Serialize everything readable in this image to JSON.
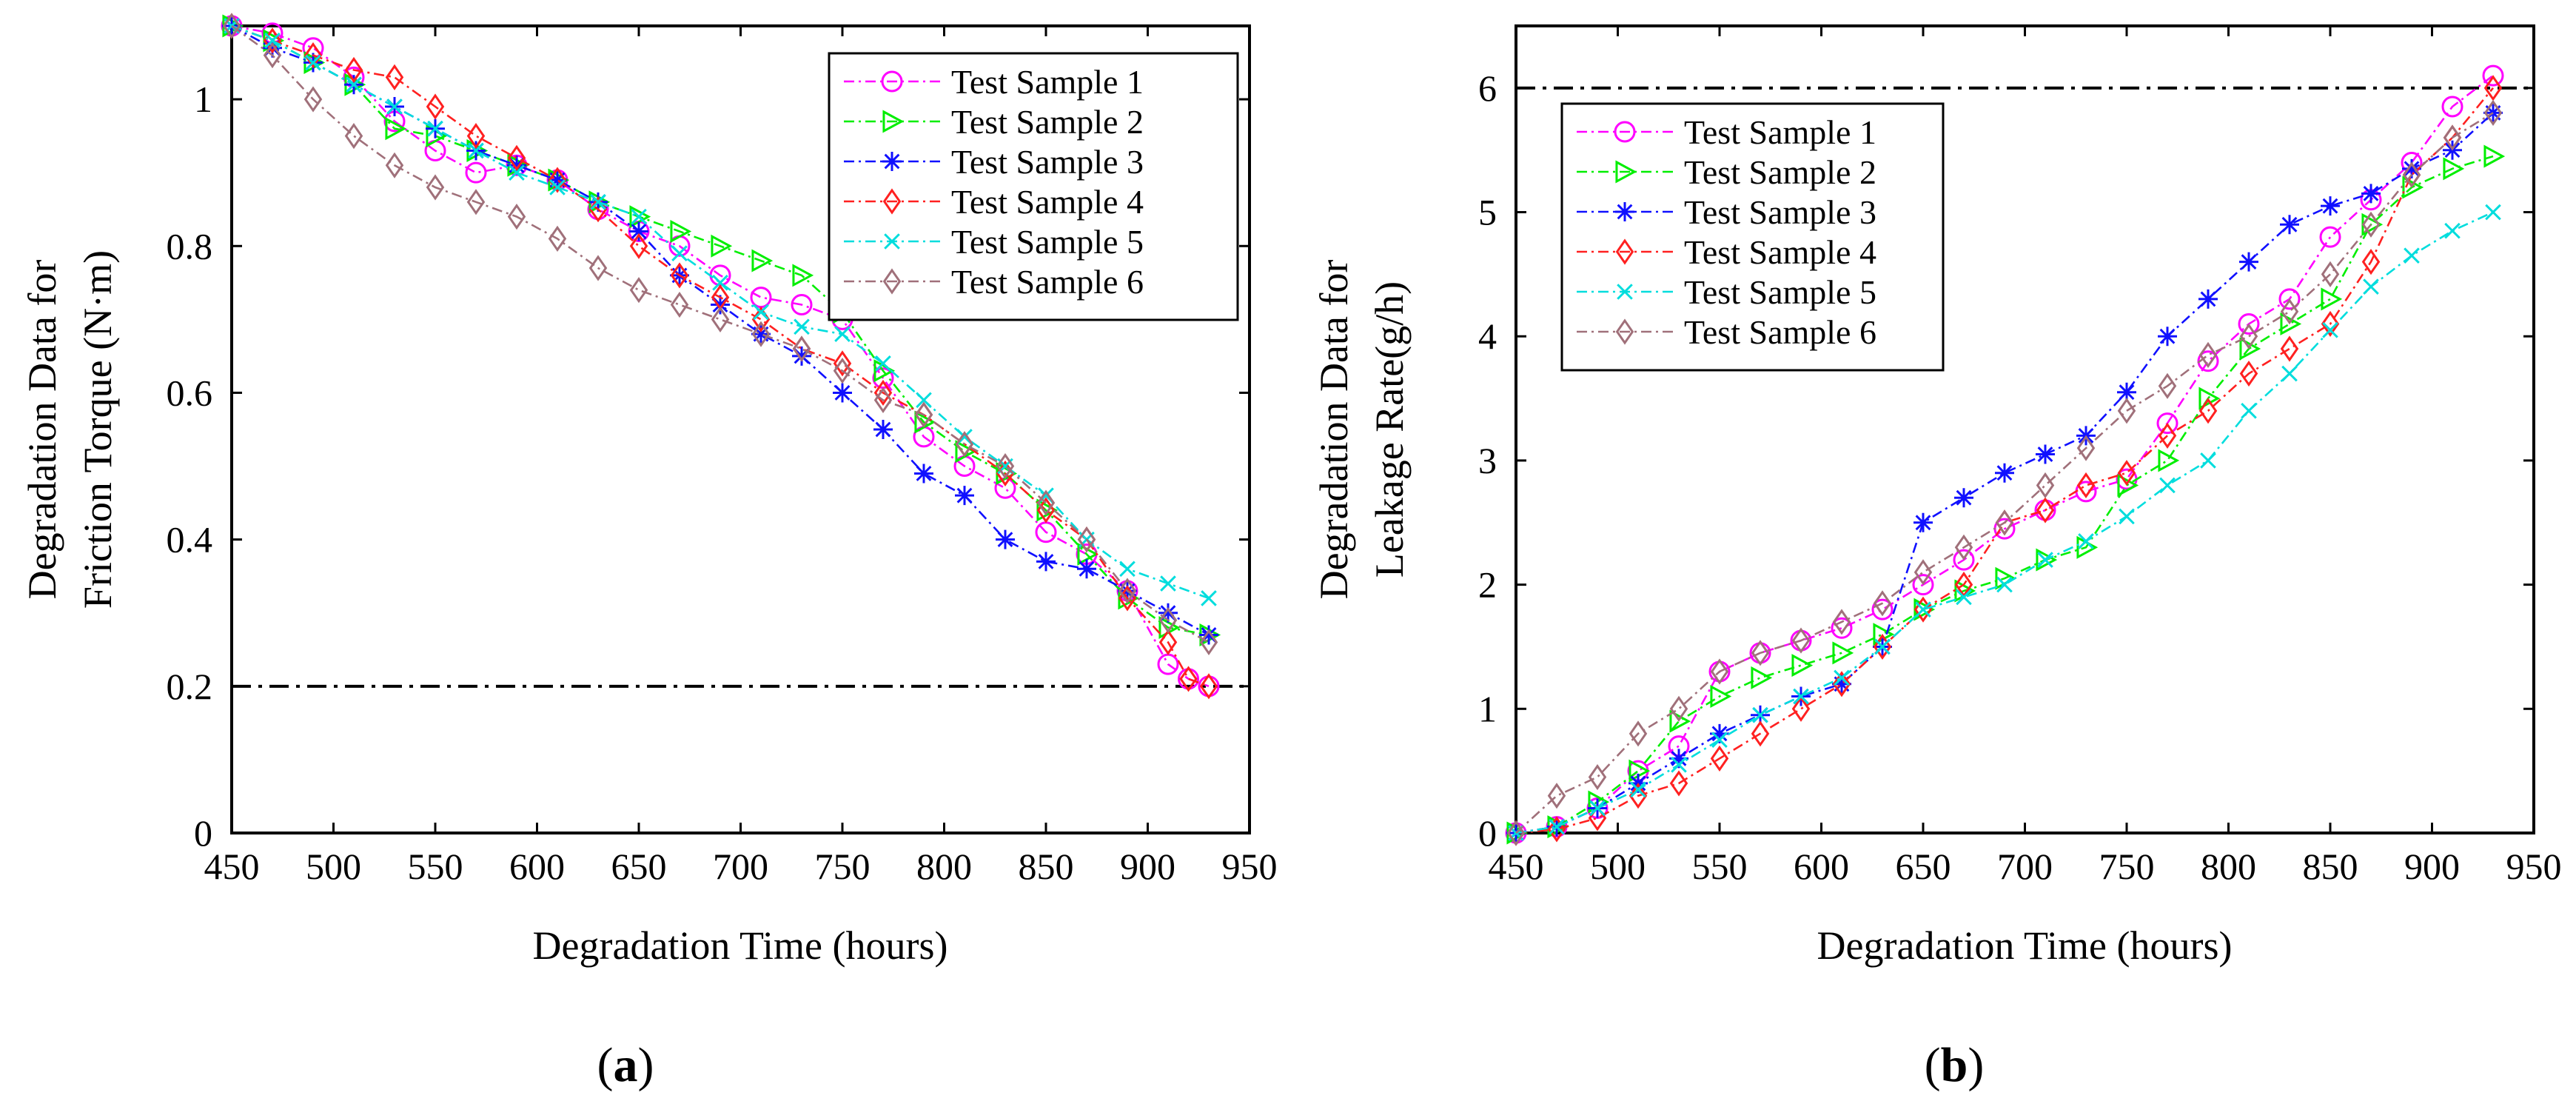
{
  "chart_data": [
    {
      "id": "a",
      "type": "line",
      "panel_label": "a",
      "xlabel": "Degradation Time (hours)",
      "ylabel_lines": [
        "Degradation Data for",
        "Friction Torque (N·m)"
      ],
      "xlim": [
        450,
        950
      ],
      "ylim": [
        0,
        1.1
      ],
      "x_ticks": [
        450,
        500,
        550,
        600,
        650,
        700,
        750,
        800,
        850,
        900,
        950
      ],
      "x_tick_labels": [
        "450",
        "500",
        "550",
        "600",
        "650",
        "700",
        "750",
        "800",
        "850",
        "900",
        "950"
      ],
      "y_ticks": [
        0,
        0.2,
        0.4,
        0.6,
        0.8,
        1
      ],
      "y_tick_labels": [
        "0",
        "0.2",
        "0.4",
        "0.6",
        "0.8",
        "1"
      ],
      "threshold": 0.2,
      "legend_position": "top-right",
      "series": [
        {
          "name": "Test Sample 1",
          "color": "#ff00ff",
          "marker": "circle",
          "x": [
            450,
            470,
            490,
            510,
            530,
            550,
            570,
            590,
            610,
            630,
            650,
            670,
            690,
            710,
            730,
            750,
            770,
            790,
            810,
            830,
            850,
            870,
            890,
            910,
            920,
            930
          ],
          "y": [
            1.1,
            1.09,
            1.07,
            1.03,
            0.97,
            0.93,
            0.9,
            0.91,
            0.89,
            0.85,
            0.82,
            0.8,
            0.76,
            0.73,
            0.72,
            0.7,
            0.62,
            0.54,
            0.5,
            0.47,
            0.41,
            0.38,
            0.33,
            0.23,
            0.21,
            0.2
          ]
        },
        {
          "name": "Test Sample 2",
          "color": "#00ee00",
          "marker": "triangle-right",
          "x": [
            450,
            470,
            490,
            510,
            530,
            550,
            570,
            590,
            610,
            630,
            650,
            670,
            690,
            710,
            730,
            750,
            770,
            790,
            810,
            830,
            850,
            870,
            890,
            910,
            930
          ],
          "y": [
            1.1,
            1.08,
            1.05,
            1.02,
            0.96,
            0.95,
            0.93,
            0.91,
            0.89,
            0.86,
            0.84,
            0.82,
            0.8,
            0.78,
            0.76,
            0.71,
            0.63,
            0.56,
            0.52,
            0.49,
            0.44,
            0.38,
            0.32,
            0.28,
            0.27
          ]
        },
        {
          "name": "Test Sample 3",
          "color": "#1010ff",
          "marker": "star",
          "x": [
            450,
            470,
            490,
            510,
            530,
            550,
            570,
            590,
            610,
            630,
            650,
            670,
            690,
            710,
            730,
            750,
            770,
            790,
            810,
            830,
            850,
            870,
            890,
            910,
            930
          ],
          "y": [
            1.1,
            1.07,
            1.05,
            1.02,
            0.99,
            0.96,
            0.93,
            0.91,
            0.89,
            0.86,
            0.82,
            0.76,
            0.72,
            0.68,
            0.65,
            0.6,
            0.55,
            0.49,
            0.46,
            0.4,
            0.37,
            0.36,
            0.33,
            0.3,
            0.27
          ]
        },
        {
          "name": "Test Sample 4",
          "color": "#ff2020",
          "marker": "diamond",
          "x": [
            450,
            470,
            490,
            510,
            530,
            550,
            570,
            590,
            610,
            630,
            650,
            670,
            690,
            710,
            730,
            750,
            770,
            790,
            810,
            830,
            850,
            870,
            890,
            910,
            920,
            930
          ],
          "y": [
            1.1,
            1.08,
            1.06,
            1.04,
            1.03,
            0.99,
            0.95,
            0.92,
            0.89,
            0.85,
            0.8,
            0.76,
            0.73,
            0.7,
            0.66,
            0.64,
            0.6,
            0.57,
            0.53,
            0.49,
            0.44,
            0.4,
            0.32,
            0.26,
            0.21,
            0.2
          ]
        },
        {
          "name": "Test Sample 5",
          "color": "#00dddd",
          "marker": "cross",
          "x": [
            450,
            470,
            490,
            510,
            530,
            550,
            570,
            590,
            610,
            630,
            650,
            670,
            690,
            710,
            730,
            750,
            770,
            790,
            810,
            830,
            850,
            870,
            890,
            910,
            930
          ],
          "y": [
            1.1,
            1.08,
            1.05,
            1.02,
            0.99,
            0.96,
            0.93,
            0.9,
            0.88,
            0.86,
            0.84,
            0.79,
            0.75,
            0.71,
            0.69,
            0.68,
            0.64,
            0.59,
            0.54,
            0.5,
            0.46,
            0.4,
            0.36,
            0.34,
            0.32
          ]
        },
        {
          "name": "Test Sample 6",
          "color": "#a0707a",
          "marker": "diamond",
          "x": [
            450,
            470,
            490,
            510,
            530,
            550,
            570,
            590,
            610,
            630,
            650,
            670,
            690,
            710,
            730,
            750,
            770,
            790,
            810,
            830,
            850,
            870,
            890,
            910,
            930
          ],
          "y": [
            1.1,
            1.06,
            1.0,
            0.95,
            0.91,
            0.88,
            0.86,
            0.84,
            0.81,
            0.77,
            0.74,
            0.72,
            0.7,
            0.68,
            0.66,
            0.63,
            0.59,
            0.57,
            0.53,
            0.5,
            0.45,
            0.4,
            0.33,
            0.29,
            0.26
          ]
        }
      ]
    },
    {
      "id": "b",
      "type": "line",
      "panel_label": "b",
      "xlabel": "Degradation Time (hours)",
      "ylabel_lines": [
        "Degradation Data for",
        "Leakage Rate(g/h)"
      ],
      "xlim": [
        450,
        950
      ],
      "ylim": [
        0,
        6.5
      ],
      "x_ticks": [
        450,
        500,
        550,
        600,
        650,
        700,
        750,
        800,
        850,
        900,
        950
      ],
      "x_tick_labels": [
        "450",
        "500",
        "550",
        "600",
        "650",
        "700",
        "750",
        "800",
        "850",
        "900",
        "950"
      ],
      "y_ticks": [
        0,
        1,
        2,
        3,
        4,
        5,
        6
      ],
      "y_tick_labels": [
        "0",
        "1",
        "2",
        "3",
        "4",
        "5",
        "6"
      ],
      "threshold": 6,
      "legend_position": "top-left",
      "series": [
        {
          "name": "Test Sample 1",
          "color": "#ff00ff",
          "marker": "circle",
          "x": [
            450,
            470,
            490,
            510,
            530,
            550,
            570,
            590,
            610,
            630,
            650,
            670,
            690,
            710,
            730,
            750,
            770,
            790,
            810,
            830,
            850,
            870,
            890,
            910,
            930
          ],
          "y": [
            0,
            0.05,
            0.2,
            0.5,
            0.7,
            1.3,
            1.45,
            1.55,
            1.65,
            1.8,
            2.0,
            2.2,
            2.45,
            2.6,
            2.75,
            2.85,
            3.3,
            3.8,
            4.1,
            4.3,
            4.8,
            5.1,
            5.4,
            5.85,
            6.1
          ]
        },
        {
          "name": "Test Sample 2",
          "color": "#00ee00",
          "marker": "triangle-right",
          "x": [
            450,
            470,
            490,
            510,
            530,
            550,
            570,
            590,
            610,
            630,
            650,
            670,
            690,
            710,
            730,
            750,
            770,
            790,
            810,
            830,
            850,
            870,
            890,
            910,
            930
          ],
          "y": [
            0,
            0.05,
            0.25,
            0.5,
            0.9,
            1.1,
            1.25,
            1.35,
            1.45,
            1.6,
            1.8,
            1.95,
            2.05,
            2.2,
            2.3,
            2.8,
            3.0,
            3.5,
            3.9,
            4.1,
            4.3,
            4.9,
            5.2,
            5.35,
            5.45
          ]
        },
        {
          "name": "Test Sample 3",
          "color": "#1010ff",
          "marker": "star",
          "x": [
            450,
            470,
            490,
            510,
            530,
            550,
            570,
            590,
            610,
            630,
            650,
            670,
            690,
            710,
            730,
            750,
            770,
            790,
            810,
            830,
            850,
            870,
            890,
            910,
            930
          ],
          "y": [
            0,
            0.05,
            0.2,
            0.4,
            0.6,
            0.8,
            0.95,
            1.1,
            1.2,
            1.5,
            2.5,
            2.7,
            2.9,
            3.05,
            3.2,
            3.55,
            4.0,
            4.3,
            4.6,
            4.9,
            5.05,
            5.15,
            5.35,
            5.5,
            5.8
          ]
        },
        {
          "name": "Test Sample 4",
          "color": "#ff2020",
          "marker": "diamond",
          "x": [
            450,
            470,
            490,
            510,
            530,
            550,
            570,
            590,
            610,
            630,
            650,
            670,
            690,
            710,
            730,
            750,
            770,
            790,
            810,
            830,
            850,
            870,
            890,
            910,
            930
          ],
          "y": [
            0,
            0.03,
            0.12,
            0.3,
            0.4,
            0.6,
            0.8,
            1.0,
            1.2,
            1.5,
            1.8,
            2.0,
            2.5,
            2.6,
            2.8,
            2.9,
            3.2,
            3.4,
            3.7,
            3.9,
            4.1,
            4.6,
            5.3,
            5.6,
            6.0
          ]
        },
        {
          "name": "Test Sample 5",
          "color": "#00dddd",
          "marker": "cross",
          "x": [
            450,
            470,
            490,
            510,
            530,
            550,
            570,
            590,
            610,
            630,
            650,
            670,
            690,
            710,
            730,
            750,
            770,
            790,
            810,
            830,
            850,
            870,
            890,
            910,
            930
          ],
          "y": [
            0,
            0.05,
            0.2,
            0.35,
            0.55,
            0.75,
            0.95,
            1.1,
            1.25,
            1.5,
            1.8,
            1.9,
            2.0,
            2.2,
            2.35,
            2.55,
            2.8,
            3.0,
            3.4,
            3.7,
            4.05,
            4.4,
            4.65,
            4.85,
            5.0
          ]
        },
        {
          "name": "Test Sample 6",
          "color": "#a0707a",
          "marker": "diamond",
          "x": [
            450,
            470,
            490,
            510,
            530,
            550,
            570,
            590,
            610,
            630,
            650,
            670,
            690,
            710,
            730,
            750,
            770,
            790,
            810,
            830,
            850,
            870,
            890,
            910,
            930
          ],
          "y": [
            0,
            0.3,
            0.45,
            0.8,
            1.0,
            1.3,
            1.45,
            1.55,
            1.7,
            1.85,
            2.1,
            2.3,
            2.5,
            2.8,
            3.1,
            3.4,
            3.6,
            3.85,
            4.0,
            4.2,
            4.5,
            4.9,
            5.3,
            5.6,
            5.8
          ]
        }
      ]
    }
  ]
}
